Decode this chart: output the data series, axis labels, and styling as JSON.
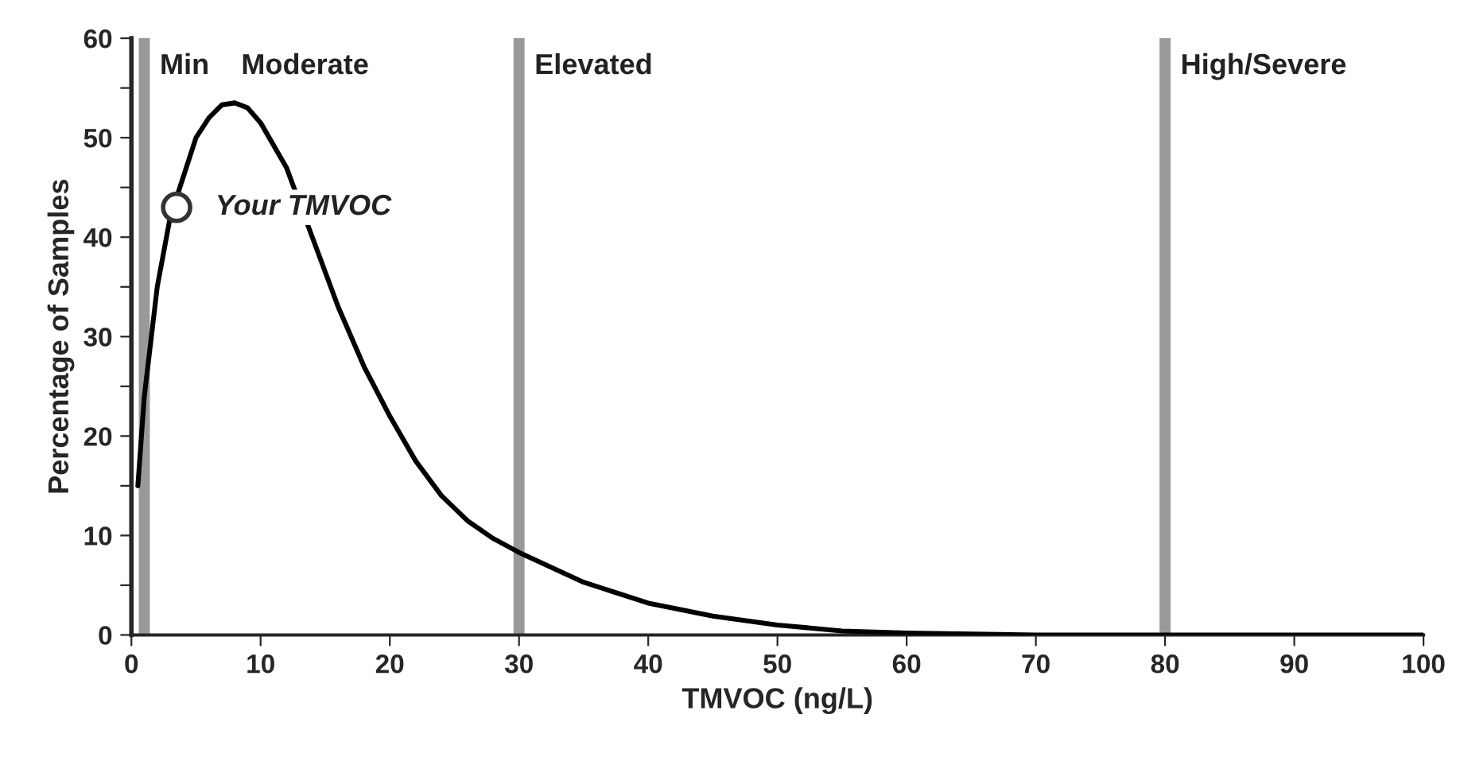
{
  "chart_data": {
    "type": "line",
    "xlabel": "TMVOC (ng/L)",
    "ylabel": "Percentage of Samples",
    "xlim": [
      0,
      100
    ],
    "ylim": [
      0,
      60
    ],
    "xticks": [
      0,
      10,
      20,
      30,
      40,
      50,
      60,
      70,
      80,
      90,
      100
    ],
    "yticks": [
      0,
      {
        "value": 5,
        "label": null
      },
      10,
      {
        "value": 15,
        "label": null
      },
      20,
      {
        "value": 25,
        "label": null
      },
      30,
      {
        "value": 35,
        "label": null
      },
      40,
      {
        "value": 45,
        "label": null
      },
      50,
      {
        "value": 55,
        "label": null
      },
      60
    ],
    "grid": false,
    "legend": false,
    "series": [
      {
        "color": "#000000",
        "marker": "none",
        "x": [
          0.5,
          1,
          2,
          3,
          4,
          5,
          6,
          7,
          8,
          9,
          10,
          12,
          14,
          16,
          18,
          20,
          22,
          24,
          26,
          28,
          30,
          35,
          40,
          45,
          50,
          55,
          60,
          70,
          80,
          90,
          100
        ],
        "values": [
          15,
          24,
          35,
          42,
          46,
          50,
          52,
          53.3,
          53.5,
          53,
          51.5,
          47,
          40,
          33,
          27,
          22,
          17.5,
          14,
          11.5,
          9.7,
          8.3,
          5.3,
          3.2,
          1.9,
          1,
          0.4,
          0.2,
          0,
          0,
          0,
          0
        ]
      },
      {
        "type": "scatter",
        "name": "Your TMVOC",
        "color": "#ffffff",
        "marker": "circle",
        "x": [
          3.5
        ],
        "values": [
          43
        ]
      }
    ],
    "ref_lines": [
      {
        "axis": "x",
        "value": 1,
        "label": "Min",
        "color": "#999999"
      },
      {
        "axis": "x",
        "value": 30,
        "label": "Elevated",
        "color": "#999999"
      },
      {
        "axis": "x",
        "value": 80,
        "label": "High/Severe",
        "color": "#999999"
      }
    ],
    "annotations": [
      "Moderate"
    ]
  }
}
